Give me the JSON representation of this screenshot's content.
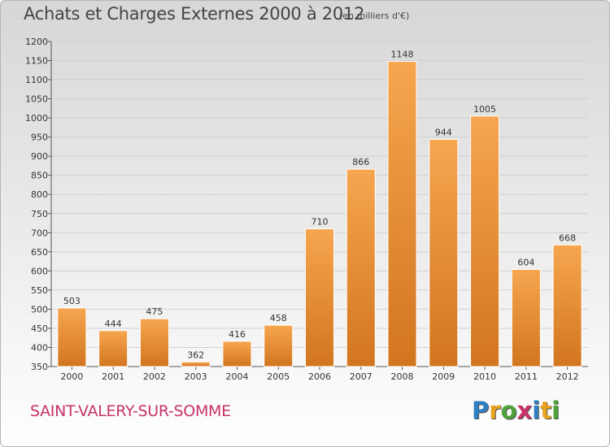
{
  "title": "Achats et Charges Externes 2000 à 2012",
  "unit_label": "(en milliers d'€)",
  "commune": "SAINT-VALERY-SUR-SOMME",
  "logo": {
    "text": "Proxiti",
    "letters": [
      {
        "ch": "P",
        "color": "#2f7fc1"
      },
      {
        "ch": "r",
        "color": "#e8a21e"
      },
      {
        "ch": "o",
        "color": "#4ba33a"
      },
      {
        "ch": "x",
        "color": "#c7336a"
      },
      {
        "ch": "i",
        "color": "#2f7fc1"
      },
      {
        "ch": "t",
        "color": "#e8a21e"
      },
      {
        "ch": "i",
        "color": "#4ba33a"
      }
    ]
  },
  "colors": {
    "bar_light": "#f6a64f",
    "bar_dark": "#d2751f",
    "title": "#444444",
    "commune": "#c7336a",
    "grid": "#cfcfcf"
  },
  "chart_data": {
    "type": "bar",
    "title": "Achats et Charges Externes 2000 à 2012",
    "xlabel": "",
    "ylabel": "",
    "categories": [
      "2000",
      "2001",
      "2002",
      "2003",
      "2004",
      "2005",
      "2006",
      "2007",
      "2008",
      "2009",
      "2010",
      "2011",
      "2012"
    ],
    "values": [
      503,
      444,
      475,
      362,
      416,
      458,
      710,
      866,
      1148,
      944,
      1005,
      604,
      668
    ],
    "ylim": [
      350,
      1200
    ],
    "yticks": [
      350,
      400,
      450,
      500,
      550,
      600,
      650,
      700,
      750,
      800,
      850,
      900,
      950,
      1000,
      1050,
      1100,
      1150,
      1200
    ],
    "grid": true,
    "legend": "none"
  }
}
